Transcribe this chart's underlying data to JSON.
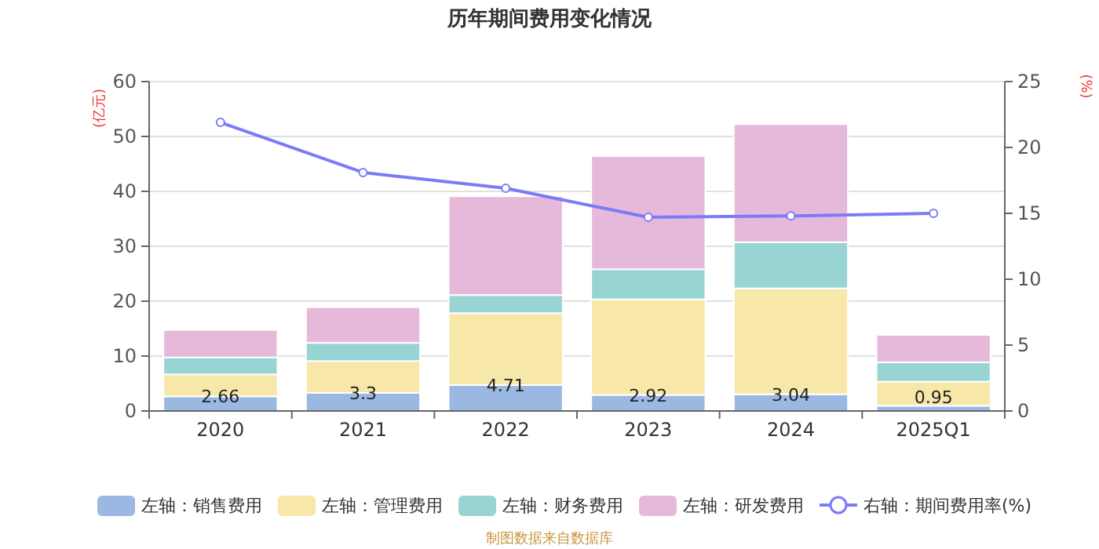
{
  "chart_data": {
    "type": "bar",
    "title": "历年期间费用变化情况",
    "ylabel": "(亿元)",
    "y2label": "(%)",
    "stacked": true,
    "categories": [
      "2020",
      "2021",
      "2022",
      "2023",
      "2024",
      "2025Q1"
    ],
    "series": [
      {
        "name": "左轴：销售费用",
        "color": "#9bb8e3",
        "values": [
          2.66,
          3.3,
          4.71,
          2.92,
          3.04,
          0.95
        ],
        "value_labels": [
          "2.66",
          "3.3",
          "4.71",
          "2.92",
          "3.04",
          "0.95"
        ]
      },
      {
        "name": "左轴：管理费用",
        "color": "#f7e7a8",
        "values": [
          4.0,
          5.8,
          13.1,
          17.4,
          19.3,
          4.4
        ]
      },
      {
        "name": "左轴：财务费用",
        "color": "#98d4d4",
        "values": [
          3.1,
          3.3,
          3.3,
          5.5,
          8.4,
          3.5
        ]
      },
      {
        "name": "左轴：研发费用",
        "color": "#e6b8d9",
        "values": [
          5.0,
          6.5,
          18.0,
          20.6,
          21.5,
          5.0
        ]
      },
      {
        "name": "右轴：期间费用率(%)",
        "type": "line",
        "axis": "y2",
        "color": "#7b7bf7",
        "marker": "circle",
        "values": [
          21.9,
          18.1,
          16.9,
          14.7,
          14.8,
          15.0
        ]
      }
    ],
    "ylim": [
      0,
      60
    ],
    "yticks": [
      0,
      10,
      20,
      30,
      40,
      50,
      60
    ],
    "y2lim": [
      0,
      25
    ],
    "y2ticks": [
      0,
      5,
      10,
      15,
      20,
      25
    ],
    "grid": "y",
    "legend": "bottom",
    "annotations": [
      "制图数据来自数据库"
    ]
  }
}
